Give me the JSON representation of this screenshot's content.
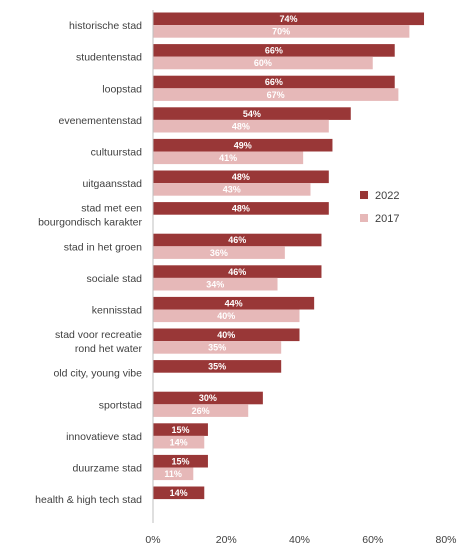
{
  "chart_data": {
    "type": "bar",
    "orientation": "horizontal",
    "categories": [
      [
        "historische stad"
      ],
      [
        "studentenstad"
      ],
      [
        "loopstad"
      ],
      [
        "evenementenstad"
      ],
      [
        "cultuurstad"
      ],
      [
        "uitgaansstad"
      ],
      [
        "stad met een",
        "bourgondisch karakter"
      ],
      [
        "stad in het groen"
      ],
      [
        "sociale stad"
      ],
      [
        "kennisstad"
      ],
      [
        "stad voor recreatie",
        "rond het water"
      ],
      [
        "old city, young vibe"
      ],
      [
        "sportstad"
      ],
      [
        "innovatieve stad"
      ],
      [
        "duurzame stad"
      ],
      [
        "health & high tech stad"
      ]
    ],
    "series": [
      {
        "name": "2022",
        "color": "#993737",
        "values": [
          74,
          66,
          66,
          54,
          49,
          48,
          48,
          46,
          46,
          44,
          40,
          35,
          30,
          15,
          15,
          14
        ],
        "labels": [
          "74%",
          "66%",
          "66%",
          "54%",
          "49%",
          "48%",
          "48%",
          "46%",
          "46%",
          "44%",
          "40%",
          "35%",
          "30%",
          "15%",
          "15%",
          "14%"
        ]
      },
      {
        "name": "2017",
        "color": "#e6b8b8",
        "values": [
          70,
          60,
          67,
          48,
          41,
          43,
          null,
          36,
          34,
          40,
          35,
          null,
          26,
          14,
          11,
          null
        ],
        "labels": [
          "70%",
          "60%",
          "67%",
          "48%",
          "41%",
          "43%",
          null,
          "36%",
          "34%",
          "40%",
          "35%",
          null,
          "26%",
          "14%",
          "11%",
          null
        ]
      }
    ],
    "x_ticks": [
      "0%",
      "20%",
      "40%",
      "60%",
      "80%"
    ],
    "xlim": [
      0,
      80
    ],
    "grid": false,
    "legend_position": "right"
  }
}
